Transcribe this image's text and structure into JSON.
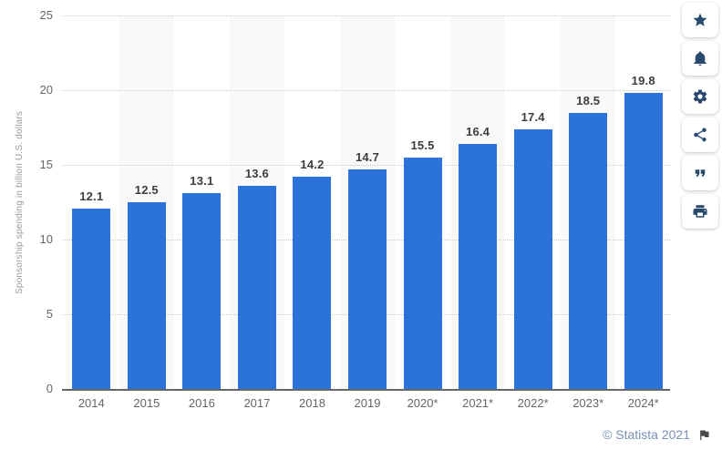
{
  "chart_data": {
    "type": "bar",
    "categories": [
      "2014",
      "2015",
      "2016",
      "2017",
      "2018",
      "2019",
      "2020*",
      "2021*",
      "2022*",
      "2023*",
      "2024*"
    ],
    "values": [
      12.1,
      12.5,
      13.1,
      13.6,
      14.2,
      14.7,
      15.5,
      16.4,
      17.4,
      18.5,
      19.8
    ],
    "title": "",
    "xlabel": "",
    "ylabel": "Sponsorship spending in billion U.S. dollars",
    "yticks": [
      0,
      5,
      10,
      15,
      20,
      25
    ],
    "ylim": [
      0,
      25
    ],
    "grid": true,
    "legend_position": "none",
    "bar_color": "#2b72d9",
    "stripe_color": "#f9f9f9",
    "striped_columns": [
      1,
      3,
      5,
      7,
      9
    ],
    "label_color": "#3d3d3d",
    "tick_color": "#666666"
  },
  "toolbar": {
    "buttons": [
      {
        "name": "favorite-button",
        "icon": "star-icon"
      },
      {
        "name": "notifications-button",
        "icon": "bell-icon"
      },
      {
        "name": "settings-button",
        "icon": "gear-icon"
      },
      {
        "name": "share-button",
        "icon": "share-icon"
      },
      {
        "name": "cite-button",
        "icon": "quote-icon"
      },
      {
        "name": "print-button",
        "icon": "printer-icon"
      }
    ]
  },
  "footer": {
    "credit": "© Statista 2021",
    "flag_icon": "flag-icon"
  }
}
